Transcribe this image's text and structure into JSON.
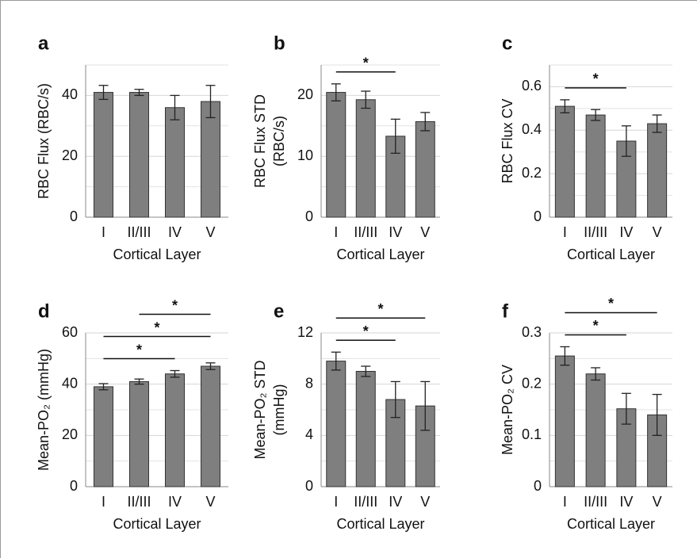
{
  "chart_data": [
    {
      "type": "bar",
      "panel": "a",
      "ylabel": [
        "RBC Flux (RBC/s)"
      ],
      "xlabel": "Cortical Layer",
      "categories": [
        "I",
        "II/III",
        "IV",
        "V"
      ],
      "values": [
        41,
        41,
        36,
        38
      ],
      "errors": [
        2.3,
        1,
        4,
        5.3
      ],
      "ylim": [
        0,
        50
      ],
      "yticks": [
        0,
        20,
        40
      ],
      "minor_yticks": [
        10,
        30,
        50
      ],
      "grid": true,
      "color": "#7f7f7f",
      "brackets": []
    },
    {
      "type": "bar",
      "panel": "b",
      "ylabel": [
        "RBC Flux STD",
        "(RBC/s)"
      ],
      "xlabel": "Cortical Layer",
      "categories": [
        "I",
        "II/III",
        "IV",
        "V"
      ],
      "values": [
        20.5,
        19.3,
        13.3,
        15.7
      ],
      "errors": [
        1.4,
        1.4,
        2.8,
        1.5
      ],
      "ylim": [
        0,
        25
      ],
      "yticks": [
        0,
        10,
        20
      ],
      "minor_yticks": [
        5,
        15,
        25
      ],
      "grid": true,
      "color": "#7f7f7f",
      "brackets": [
        {
          "span": [
            "I",
            "IV"
          ],
          "label": "*"
        }
      ]
    },
    {
      "type": "bar",
      "panel": "c",
      "ylabel": [
        "RBC Flux CV"
      ],
      "xlabel": "Cortical Layer",
      "categories": [
        "I",
        "II/III",
        "IV",
        "V"
      ],
      "values": [
        0.51,
        0.47,
        0.35,
        0.43
      ],
      "errors": [
        0.03,
        0.025,
        0.07,
        0.04
      ],
      "ylim": [
        0,
        0.7
      ],
      "yticks": [
        0,
        0.2,
        0.4,
        0.6
      ],
      "minor_yticks": [
        0.1,
        0.3,
        0.5,
        0.7
      ],
      "grid": true,
      "color": "#7f7f7f",
      "brackets": [
        {
          "span": [
            "I",
            "IV"
          ],
          "label": "*"
        }
      ]
    },
    {
      "type": "bar",
      "panel": "d",
      "ylabel": [
        "Mean-PO₂ (mmHg)"
      ],
      "xlabel": "Cortical Layer",
      "categories": [
        "I",
        "II/III",
        "IV",
        "V"
      ],
      "values": [
        39,
        41,
        44,
        47
      ],
      "errors": [
        1.2,
        1,
        1.3,
        1.3
      ],
      "ylim": [
        0,
        60
      ],
      "yticks": [
        0,
        20,
        40,
        60
      ],
      "minor_yticks": [
        10,
        30,
        50
      ],
      "grid": true,
      "color": "#7f7f7f",
      "brackets": [
        {
          "span": [
            "I",
            "IV"
          ],
          "label": "*"
        },
        {
          "span": [
            "I",
            "V"
          ],
          "label": "*"
        },
        {
          "span": [
            "II/III",
            "V"
          ],
          "label": "*"
        }
      ]
    },
    {
      "type": "bar",
      "panel": "e",
      "ylabel": [
        "Mean-PO₂ STD",
        "(mmHg)"
      ],
      "xlabel": "Cortical Layer",
      "categories": [
        "I",
        "II/III",
        "IV",
        "V"
      ],
      "values": [
        9.8,
        9,
        6.8,
        6.3
      ],
      "errors": [
        0.7,
        0.4,
        1.4,
        1.9
      ],
      "ylim": [
        0,
        12
      ],
      "yticks": [
        0,
        4,
        8,
        12
      ],
      "minor_yticks": [
        2,
        6,
        10
      ],
      "grid": true,
      "color": "#7f7f7f",
      "brackets": [
        {
          "span": [
            "I",
            "IV"
          ],
          "label": "*"
        },
        {
          "span": [
            "I",
            "V"
          ],
          "label": "*"
        }
      ]
    },
    {
      "type": "bar",
      "panel": "f",
      "ylabel": [
        "Mean-PO₂ CV"
      ],
      "xlabel": "Cortical Layer",
      "categories": [
        "I",
        "II/III",
        "IV",
        "V"
      ],
      "values": [
        0.255,
        0.22,
        0.152,
        0.14
      ],
      "errors": [
        0.018,
        0.012,
        0.03,
        0.04
      ],
      "ylim": [
        0,
        0.3
      ],
      "yticks": [
        0,
        0.1,
        0.2,
        0.3
      ],
      "minor_yticks": [
        0.05,
        0.15,
        0.25
      ],
      "grid": true,
      "color": "#7f7f7f",
      "brackets": [
        {
          "span": [
            "I",
            "IV"
          ],
          "label": "*"
        },
        {
          "span": [
            "I",
            "V"
          ],
          "label": "*"
        }
      ]
    }
  ]
}
